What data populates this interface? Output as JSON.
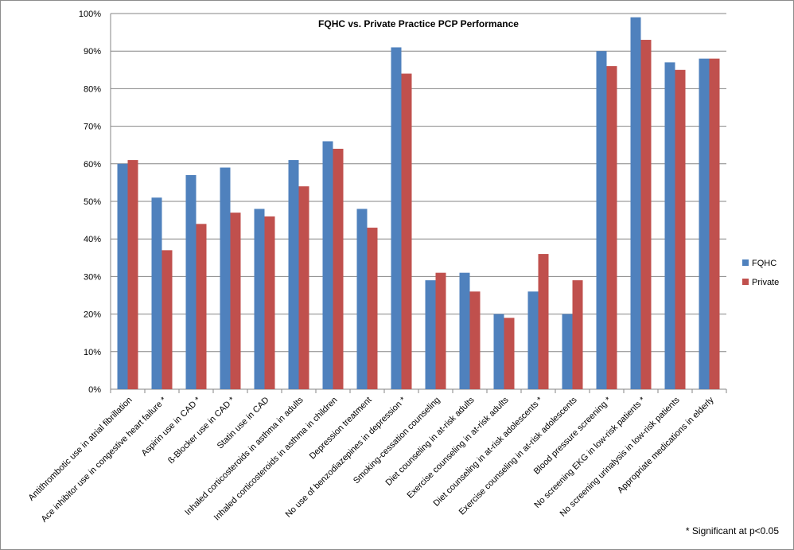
{
  "chart_data": {
    "type": "bar",
    "title": "FQHC vs. Private Practice PCP Performance",
    "xlabel": "",
    "ylabel": "",
    "ylim": [
      0,
      100
    ],
    "y_ticks": [
      0,
      10,
      20,
      30,
      40,
      50,
      60,
      70,
      80,
      90,
      100
    ],
    "y_tick_suffix": "%",
    "grid": true,
    "legend_position": "right",
    "categories": [
      "Antithrombotic use in atrial fibrillation",
      "Ace inhibitor use in congestive heart failure *",
      "Aspirin use in CAD *",
      "ß-Blocker use in CAD *",
      "Statin use in CAD",
      "Inhaled corticosteroids in asthma in adults",
      "Inhaled corticosteroids in asthma in children",
      "Depression treatment",
      "No use of benzodiazepines in depression *",
      "Smoking-cessation counseling",
      "Diet counseling in at-risk adults",
      "Exercise counseling in at-risk adults",
      "Diet counseling in at-risk adolescents *",
      "Exercise counseling in at-risk adolescents",
      "Blood pressure screening *",
      "No screening EKG in low-risk patients *",
      "No screening urinalysis in low-risk patients",
      "Appropriate medications in elderly"
    ],
    "series": [
      {
        "name": "FQHC",
        "color": "#4f81bd",
        "values": [
          60,
          51,
          57,
          59,
          48,
          61,
          66,
          48,
          91,
          29,
          31,
          20,
          26,
          20,
          90,
          99,
          87,
          88
        ]
      },
      {
        "name": "Private",
        "color": "#c0504d",
        "values": [
          61,
          37,
          44,
          47,
          46,
          54,
          64,
          43,
          84,
          31,
          26,
          19,
          36,
          29,
          86,
          93,
          85,
          88
        ]
      }
    ],
    "footnote": "* Significant at p<0.05"
  }
}
